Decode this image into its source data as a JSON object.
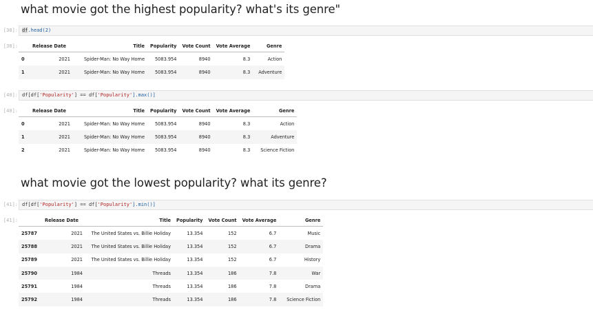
{
  "heading1": "what movie got the highest popularity? what's its genre\"",
  "heading2": "what movie got the lowest popularity? what its genre?",
  "cells": [
    {
      "in_prompt": "[38]:",
      "out_prompt": "[38]:",
      "code": {
        "obj": "df",
        "rest": ".head(2)"
      }
    },
    {
      "in_prompt": "[40]:",
      "out_prompt": "[40]:",
      "code": {
        "a": "df[df[",
        "s1": "'Popularity'",
        "b": "] == df[",
        "s2": "'Popularity'",
        "c": "].max()]"
      }
    },
    {
      "in_prompt": "[41]:",
      "out_prompt": "[41]:",
      "code": {
        "a": "df[df[",
        "s1": "'Popularity'",
        "b": "] == df[",
        "s2": "'Popularity'",
        "c": "].min()]"
      }
    }
  ],
  "columns": [
    "Release Date",
    "Title",
    "Popularity",
    "Vote Count",
    "Vote Average",
    "Genre"
  ],
  "table1": [
    {
      "idx": "0",
      "year": "2021",
      "title": "Spider-Man: No Way Home",
      "pop": "5083.954",
      "count": "8940",
      "avg": "8.3",
      "genre": "Action"
    },
    {
      "idx": "1",
      "year": "2021",
      "title": "Spider-Man: No Way Home",
      "pop": "5083.954",
      "count": "8940",
      "avg": "8.3",
      "genre": "Adventure"
    }
  ],
  "table2": [
    {
      "idx": "0",
      "year": "2021",
      "title": "Spider-Man: No Way Home",
      "pop": "5083.954",
      "count": "8940",
      "avg": "8.3",
      "genre": "Action"
    },
    {
      "idx": "1",
      "year": "2021",
      "title": "Spider-Man: No Way Home",
      "pop": "5083.954",
      "count": "8940",
      "avg": "8.3",
      "genre": "Adventure"
    },
    {
      "idx": "2",
      "year": "2021",
      "title": "Spider-Man: No Way Home",
      "pop": "5083.954",
      "count": "8940",
      "avg": "8.3",
      "genre": "Science Fiction"
    }
  ],
  "table3": [
    {
      "idx": "25787",
      "year": "2021",
      "title": "The United States vs. Billie Holiday",
      "pop": "13.354",
      "count": "152",
      "avg": "6.7",
      "genre": "Music"
    },
    {
      "idx": "25788",
      "year": "2021",
      "title": "The United States vs. Billie Holiday",
      "pop": "13.354",
      "count": "152",
      "avg": "6.7",
      "genre": "Drama"
    },
    {
      "idx": "25789",
      "year": "2021",
      "title": "The United States vs. Billie Holiday",
      "pop": "13.354",
      "count": "152",
      "avg": "6.7",
      "genre": "History"
    },
    {
      "idx": "25790",
      "year": "1984",
      "title": "Threads",
      "pop": "13.354",
      "count": "186",
      "avg": "7.8",
      "genre": "War"
    },
    {
      "idx": "25791",
      "year": "1984",
      "title": "Threads",
      "pop": "13.354",
      "count": "186",
      "avg": "7.8",
      "genre": "Drama"
    },
    {
      "idx": "25792",
      "year": "1984",
      "title": "Threads",
      "pop": "13.354",
      "count": "186",
      "avg": "7.8",
      "genre": "Science Fiction"
    }
  ]
}
